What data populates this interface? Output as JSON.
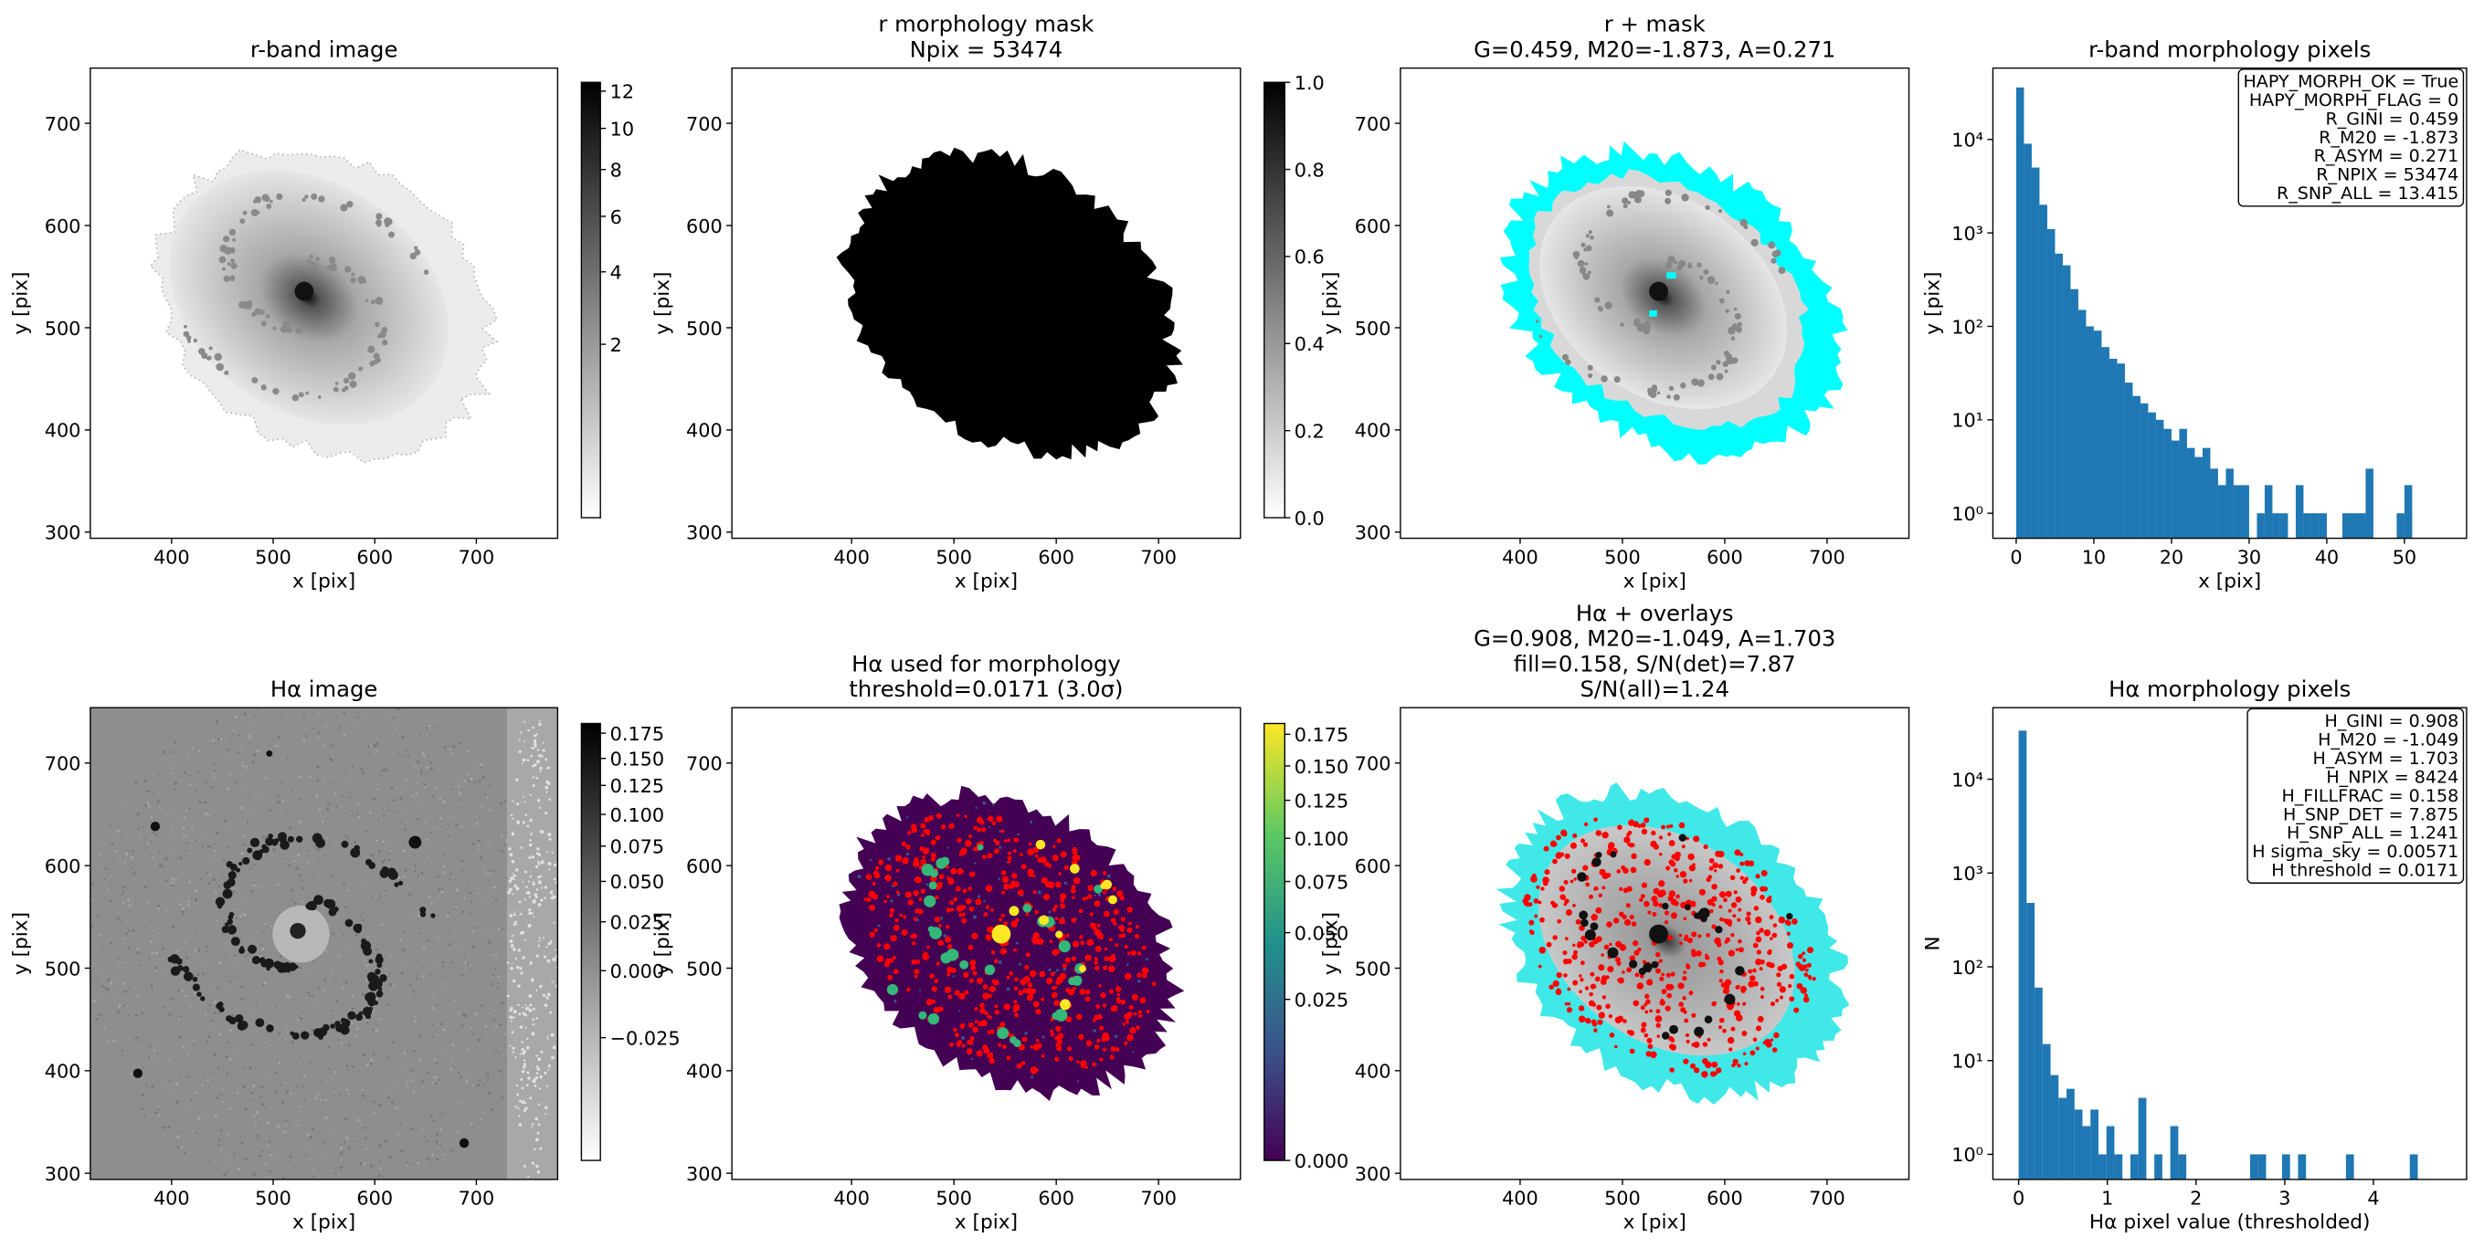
{
  "chart_data": [
    {
      "type": "image",
      "title": [
        "r-band image"
      ],
      "xlabel": "x [pix]",
      "ylabel": "y [pix]",
      "xlim": [
        320,
        780
      ],
      "ylim": [
        294,
        754
      ],
      "xticks": [
        400,
        500,
        600,
        700
      ],
      "yticks": [
        300,
        400,
        500,
        600,
        700
      ],
      "colorbar": {
        "cmap": "gray_r",
        "scale": "sqrt",
        "lim": [
          0.02,
          12.5
        ],
        "ticks": [
          2,
          4,
          6,
          8,
          10,
          12
        ]
      }
    },
    {
      "type": "image",
      "title": [
        "r morphology mask",
        "Npix = 53474"
      ],
      "xlabel": "x [pix]",
      "ylabel": "y [pix]",
      "xlim": [
        283,
        780
      ],
      "ylim": [
        294,
        754
      ],
      "xticks": [
        400,
        500,
        600,
        700
      ],
      "yticks": [
        300,
        400,
        500,
        600,
        700
      ],
      "colorbar": {
        "cmap": "gray_r",
        "scale": "linear",
        "lim": [
          0,
          1
        ],
        "ticks": [
          {
            "value": 0,
            "label": "0.0"
          },
          0.2,
          0.4,
          0.6,
          0.8,
          {
            "value": 1,
            "label": "1.0"
          }
        ]
      }
    },
    {
      "type": "image",
      "title": [
        "r + mask",
        "G=0.459, M20=-1.873, A=0.271"
      ],
      "xlabel": "x [pix]",
      "ylabel": "y [pix]",
      "xlim": [
        283,
        780
      ],
      "ylim": [
        294,
        754
      ],
      "xticks": [
        400,
        500,
        600,
        700
      ],
      "yticks": [
        300,
        400,
        500,
        600,
        700
      ]
    },
    {
      "type": "histogram",
      "title": [
        "r-band morphology pixels"
      ],
      "xlabel": "x [pix]",
      "ylabel": "y [pix]",
      "color": "#1f77b4",
      "log_y": true,
      "xlim": [
        -3,
        58
      ],
      "ylim": [
        0.54,
        58000
      ],
      "xticks": [
        0,
        10,
        20,
        30,
        40,
        50
      ],
      "yticks": [
        {
          "value": 1,
          "label": "10⁰"
        },
        {
          "value": 10,
          "label": "10¹"
        },
        {
          "value": 100,
          "label": "10²"
        },
        {
          "value": 1000,
          "label": "10³"
        },
        {
          "value": 10000,
          "label": "10⁴"
        }
      ],
      "bins": [
        0,
        1,
        2,
        3,
        4,
        5,
        6,
        7,
        8,
        9,
        10,
        11,
        12,
        13,
        14,
        15,
        16,
        17,
        18,
        19,
        20,
        21,
        22,
        23,
        24,
        25,
        26,
        27,
        28,
        29,
        30,
        31,
        32,
        33,
        34,
        35,
        36,
        37,
        38,
        39,
        40,
        41,
        42,
        43,
        44,
        45,
        46,
        47,
        48,
        49,
        50,
        51
      ],
      "values": [
        36000,
        9000,
        5000,
        2000,
        1100,
        600,
        450,
        250,
        150,
        100,
        90,
        60,
        45,
        40,
        25,
        18,
        15,
        12,
        10,
        8,
        6,
        8,
        5,
        4,
        5,
        3,
        2,
        3,
        2,
        2,
        0,
        1,
        2,
        1,
        1,
        0,
        2,
        1,
        1,
        1,
        0,
        0,
        1,
        1,
        1,
        3,
        0,
        0,
        0,
        1,
        2
      ],
      "annotation": [
        "HAPY_MORPH_OK = True",
        "HAPY_MORPH_FLAG = 0",
        "R_GINI = 0.459",
        "R_M20 = -1.873",
        "R_ASYM = 0.271",
        "R_NPIX = 53474",
        "R_SNP_ALL = 13.415"
      ]
    },
    {
      "type": "image",
      "title": [
        "Hα image"
      ],
      "xlabel": "x [pix]",
      "ylabel": "y [pix]",
      "xlim": [
        320,
        780
      ],
      "ylim": [
        294,
        754
      ],
      "xticks": [
        400,
        500,
        600,
        700
      ],
      "yticks": [
        300,
        400,
        500,
        600,
        700
      ],
      "colorbar": {
        "cmap": "gray_r",
        "scale": "sqrt",
        "lim": [
          -0.043,
          0.185
        ],
        "ticks": [
          {
            "value": -0.025,
            "label": "−0.025"
          },
          {
            "value": 0,
            "label": "0.000"
          },
          0.025,
          {
            "value": 0.05,
            "label": "0.050"
          },
          0.075,
          {
            "value": 0.1,
            "label": "0.100"
          },
          0.125,
          {
            "value": 0.15,
            "label": "0.150"
          },
          0.175
        ]
      }
    },
    {
      "type": "image",
      "title": [
        "Hα used for morphology",
        "threshold=0.0171 (3.0σ)"
      ],
      "xlabel": "x [pix]",
      "ylabel": "y [pix]",
      "xlim": [
        283,
        780
      ],
      "ylim": [
        294,
        754
      ],
      "xticks": [
        400,
        500,
        600,
        700
      ],
      "yticks": [
        300,
        400,
        500,
        600,
        700
      ],
      "colorbar": {
        "cmap": "viridis",
        "scale": "sqrt",
        "lim": [
          0,
          0.184
        ],
        "ticks": [
          {
            "value": 0,
            "label": "0.000"
          },
          0.025,
          {
            "value": 0.05,
            "label": "0.050"
          },
          0.075,
          {
            "value": 0.1,
            "label": "0.100"
          },
          0.125,
          {
            "value": 0.15,
            "label": "0.150"
          },
          0.175
        ]
      }
    },
    {
      "type": "image",
      "title": [
        "Hα + overlays",
        "G=0.908, M20=-1.049, A=1.703",
        "fill=0.158, S/N(det)=7.87",
        "S/N(all)=1.24"
      ],
      "xlabel": "x [pix]",
      "ylabel": "y [pix]",
      "xlim": [
        283,
        780
      ],
      "ylim": [
        294,
        754
      ],
      "xticks": [
        400,
        500,
        600,
        700
      ],
      "yticks": [
        300,
        400,
        500,
        600,
        700
      ]
    },
    {
      "type": "histogram",
      "title": [
        "Hα morphology pixels"
      ],
      "xlabel": "Hα pixel value (thresholded)",
      "ylabel": "N",
      "color": "#1f77b4",
      "log_y": true,
      "xlim": [
        -0.29,
        5.05
      ],
      "ylim": [
        0.54,
        58000
      ],
      "xticks": [
        0,
        1,
        2,
        3,
        4
      ],
      "yticks": [
        {
          "value": 1,
          "label": "10⁰"
        },
        {
          "value": 10,
          "label": "10¹"
        },
        {
          "value": 100,
          "label": "10²"
        },
        {
          "value": 1000,
          "label": "10³"
        },
        {
          "value": 10000,
          "label": "10⁴"
        }
      ],
      "bins": [
        0,
        0.09,
        0.18,
        0.27,
        0.36,
        0.45,
        0.54,
        0.63,
        0.72,
        0.81,
        0.9,
        0.99,
        1.08,
        1.17,
        1.26,
        1.35,
        1.44,
        1.53,
        1.62,
        1.71,
        1.8,
        1.89,
        1.98,
        2.07,
        2.16,
        2.25,
        2.34,
        2.43,
        2.52,
        2.61,
        2.7,
        2.79,
        2.88,
        2.97,
        3.06,
        3.15,
        3.24,
        3.33,
        3.42,
        3.51,
        3.6,
        3.69,
        3.78,
        3.87,
        3.96,
        4.05,
        4.14,
        4.23,
        4.32,
        4.41,
        4.5
      ],
      "values": [
        33000,
        480,
        60,
        15,
        7,
        4,
        5,
        3,
        2,
        3,
        1,
        2,
        1,
        0,
        1,
        4,
        0,
        1,
        0,
        2,
        1,
        0,
        0,
        0,
        0,
        0,
        0,
        0,
        0,
        1,
        1,
        0,
        0,
        1,
        0,
        1,
        0,
        0,
        0,
        0,
        0,
        1,
        0,
        0,
        0,
        0,
        0,
        0,
        0,
        1
      ],
      "annotation": [
        "H_GINI = 0.908",
        "H_M20 = -1.049",
        "H_ASYM = 1.703",
        "H_NPIX = 8424",
        "H_FILLFRAC = 0.158",
        "H_SNP_DET = 7.875",
        "H_SNP_ALL = 1.241",
        "H sigma_sky = 0.00571",
        "H threshold = 0.0171"
      ]
    }
  ]
}
